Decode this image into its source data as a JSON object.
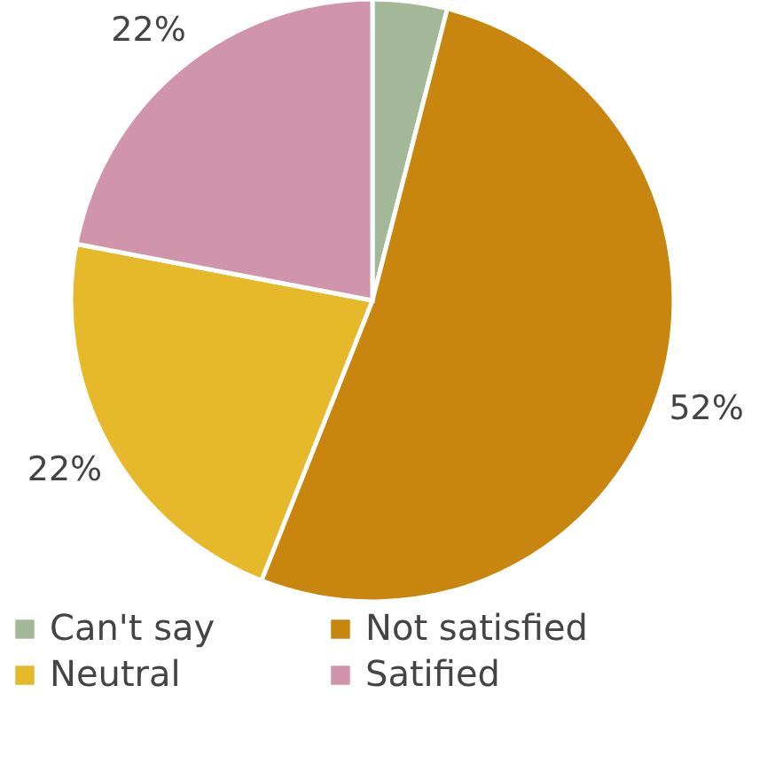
{
  "chart_data": {
    "type": "pie",
    "categories": [
      "Can't say",
      "Not satisfied",
      "Neutral",
      "Satified"
    ],
    "values": [
      4,
      52,
      22,
      22
    ],
    "colors": [
      "#a3b899",
      "#c8860f",
      "#e6b92b",
      "#d095aa"
    ],
    "value_labels": [
      null,
      "52%",
      "22%",
      "22%"
    ],
    "legend": "bottom"
  }
}
